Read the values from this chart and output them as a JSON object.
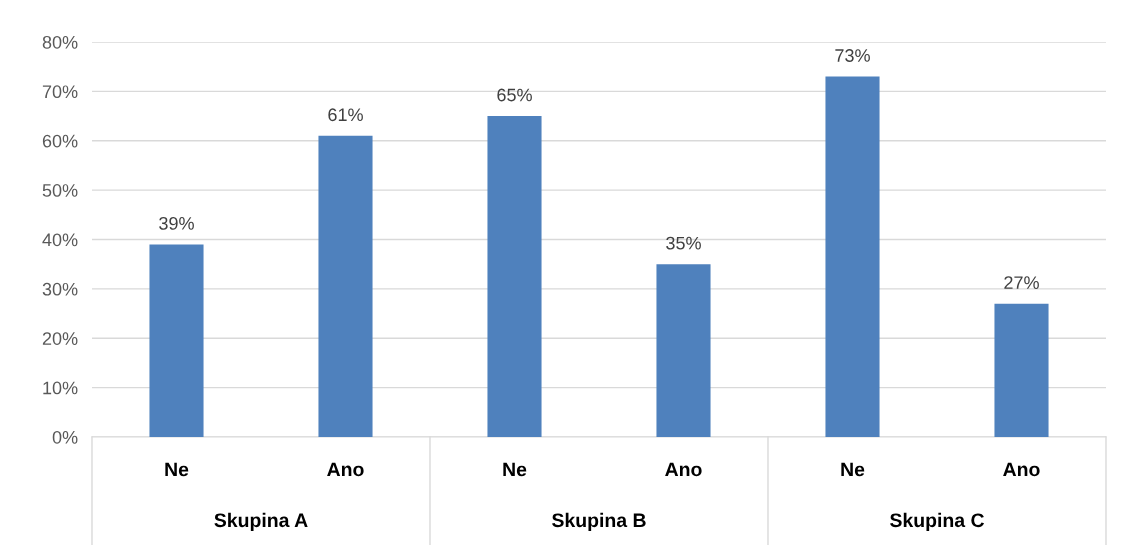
{
  "chart_data": {
    "type": "bar",
    "categories": [
      "Ne",
      "Ano",
      "Ne",
      "Ano",
      "Ne",
      "Ano"
    ],
    "values": [
      39,
      61,
      65,
      35,
      73,
      27
    ],
    "value_labels": [
      "39%",
      "61%",
      "65%",
      "35%",
      "73%",
      "27%"
    ],
    "color": "#4f81bd",
    "annotations": [
      "Skupina A",
      "Skupina B",
      "Skupina C"
    ],
    "ylim": [
      0,
      80
    ],
    "yticks": [
      {
        "value": 0,
        "label": "0%"
      },
      {
        "value": 10,
        "label": "10%"
      },
      {
        "value": 20,
        "label": "20%"
      },
      {
        "value": 30,
        "label": "30%"
      },
      {
        "value": 40,
        "label": "40%"
      },
      {
        "value": 50,
        "label": "50%"
      },
      {
        "value": 60,
        "label": "60%"
      },
      {
        "value": 70,
        "label": "70%"
      },
      {
        "value": 80,
        "label": "80%"
      }
    ],
    "grid": "y",
    "legend": false
  }
}
